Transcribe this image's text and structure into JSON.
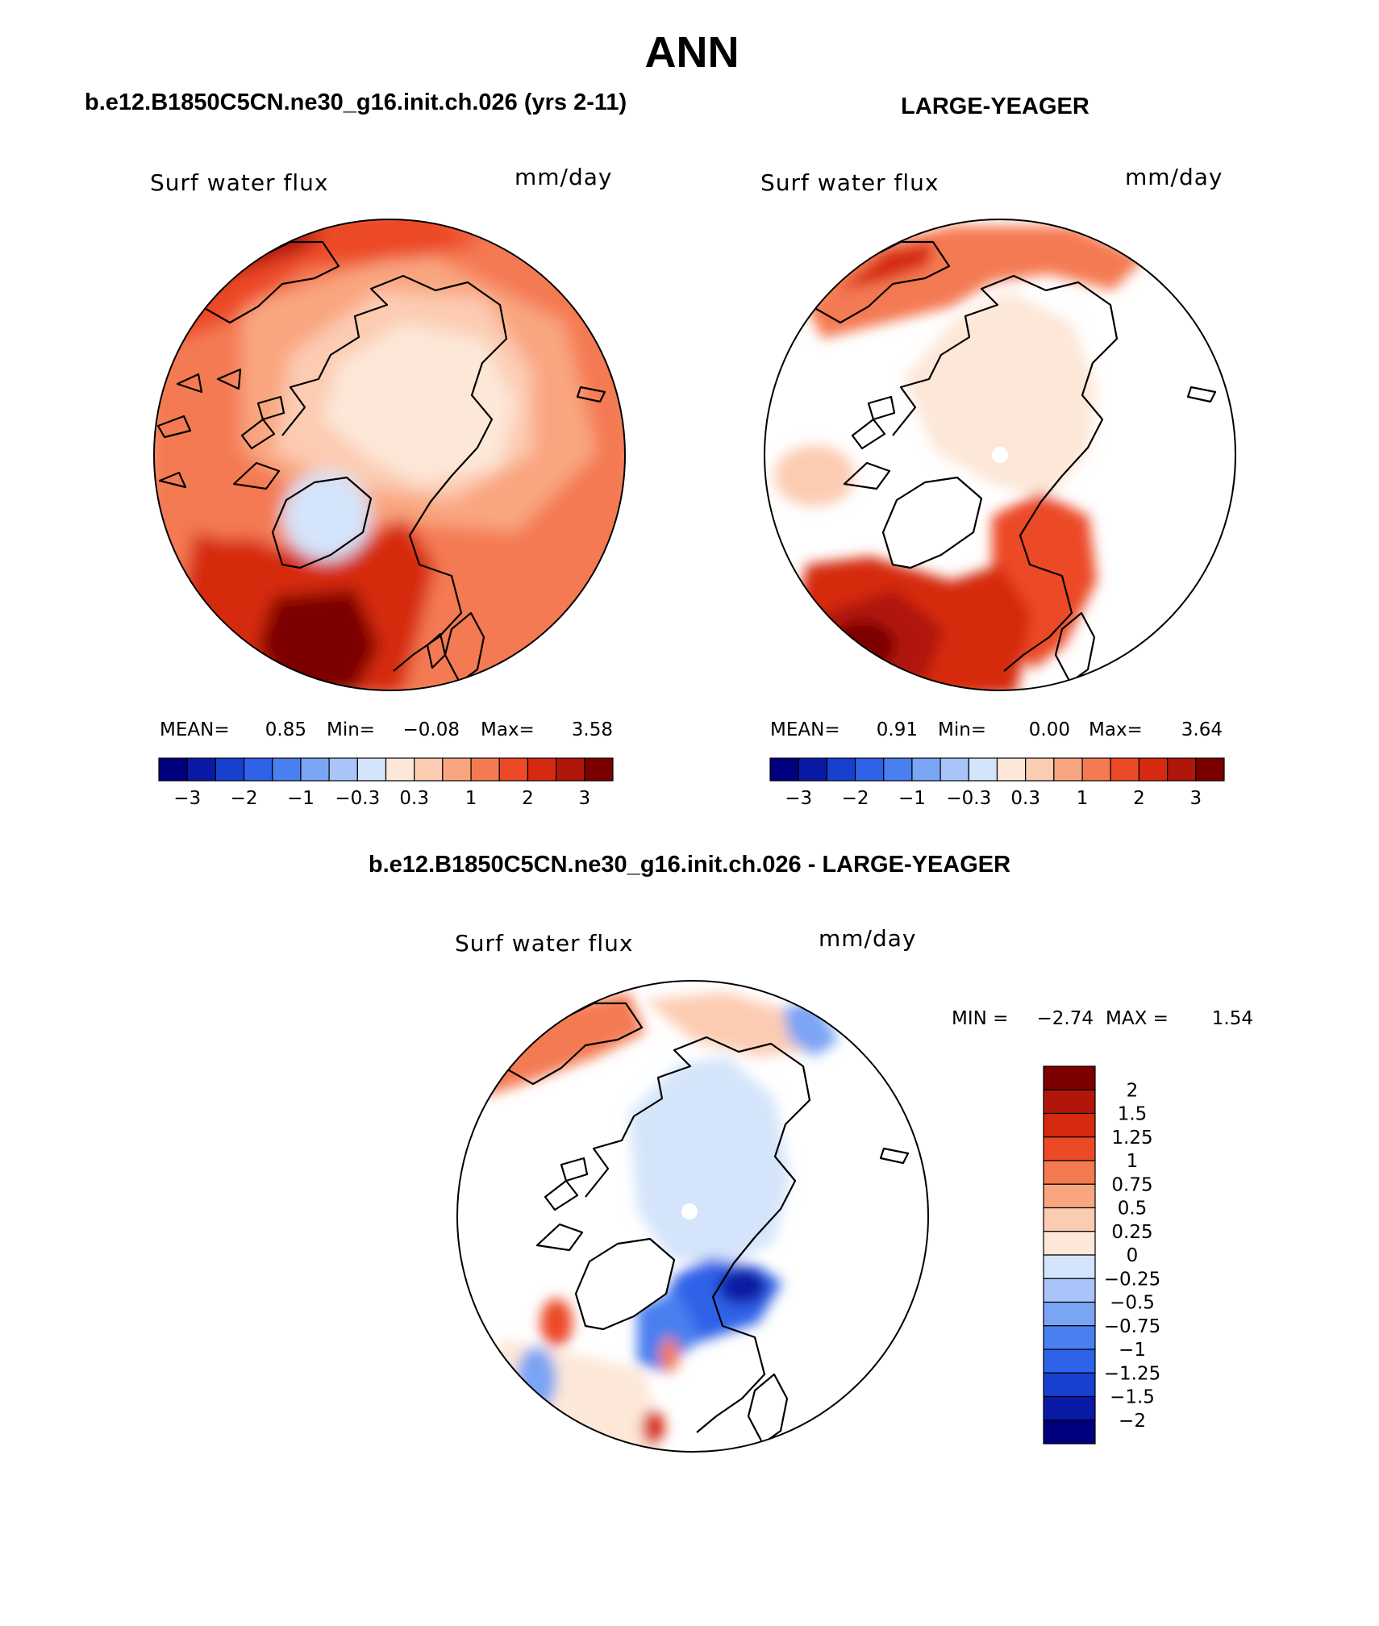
{
  "page": {
    "title": "ANN",
    "panel_left_title": "b.e12.B1850C5CN.ne30_g16.init.ch.026 (yrs 2-11)",
    "panel_right_title": "LARGE-YEAGER",
    "diff_title": "b.e12.B1850C5CN.ne30_g16.init.ch.026 - LARGE-YEAGER"
  },
  "colors": {
    "diverging": [
      "#00007f",
      "#0a1aa6",
      "#1740cf",
      "#2e62e8",
      "#4a7fef",
      "#7aa4f4",
      "#a8c4f8",
      "#d4e4fa",
      "#fde7d8",
      "#fcccb2",
      "#f9a680",
      "#f47a52",
      "#ec4a26",
      "#d62a10",
      "#b0160a",
      "#7c0000"
    ],
    "land_mask": "#ffffff",
    "coastline": "#000000"
  },
  "chart_data": [
    {
      "type": "heatmap",
      "projection": "north-polar-stereographic",
      "title": "Surf water flux",
      "units": "mm/day",
      "stats": {
        "mean_label": "MEAN=",
        "mean": "0.85",
        "min_label": "Min=",
        "min": "−0.08",
        "max_label": "Max=",
        "max": "3.58"
      },
      "colorbar": {
        "orientation": "horizontal",
        "tick_labels": [
          "−3",
          "−2",
          "−1",
          "−0.3",
          "0.3",
          "1",
          "2",
          "3"
        ]
      },
      "regions": [
        {
          "name": "central-arctic",
          "value": 0.2
        },
        {
          "name": "siberia-alaska-sector",
          "value": 0.7
        },
        {
          "name": "north-pacific",
          "value": 1.4
        },
        {
          "name": "north-america-interior",
          "value": 0.5
        },
        {
          "name": "greenland",
          "value": -0.08
        },
        {
          "name": "nordic-seas",
          "value": 1.6
        },
        {
          "name": "north-atlantic",
          "value": 3.3
        }
      ]
    },
    {
      "type": "heatmap",
      "projection": "north-polar-stereographic",
      "title": "Surf water flux",
      "units": "mm/day",
      "stats": {
        "mean_label": "MEAN=",
        "mean": "0.91",
        "min_label": "Min=",
        "min": "0.00",
        "max_label": "Max=",
        "max": "3.64"
      },
      "colorbar": {
        "orientation": "horizontal",
        "tick_labels": [
          "−3",
          "−2",
          "−1",
          "−0.3",
          "0.3",
          "1",
          "2",
          "3"
        ]
      },
      "regions": [
        {
          "name": "central-arctic",
          "value": 0.15
        },
        {
          "name": "north-pacific",
          "value": 1.2
        },
        {
          "name": "hudson-bay",
          "value": 0.4
        },
        {
          "name": "nordic-seas",
          "value": 1.8
        },
        {
          "name": "north-atlantic",
          "value": 3.0
        }
      ]
    },
    {
      "type": "heatmap",
      "projection": "north-polar-stereographic",
      "title": "Surf water flux",
      "units": "mm/day",
      "stats": {
        "min_label": "MIN =",
        "min": "−2.74",
        "max_label": "MAX =",
        "max": "1.54"
      },
      "colorbar": {
        "orientation": "vertical",
        "tick_labels": [
          "2",
          "1.5",
          "1.25",
          "1",
          "0.75",
          "0.5",
          "0.25",
          "0",
          "−0.25",
          "−0.5",
          "−0.75",
          "−1",
          "−1.25",
          "−1.5",
          "−2"
        ]
      },
      "regions": [
        {
          "name": "central-arctic",
          "value": -0.15
        },
        {
          "name": "north-pacific",
          "value": 0.6
        },
        {
          "name": "barents-sea",
          "value": -2.2
        },
        {
          "name": "nordic-seas",
          "value": -1.1
        },
        {
          "name": "labrador-sea",
          "value": 0.9
        },
        {
          "name": "north-atlantic",
          "value": 0.3
        }
      ]
    }
  ]
}
